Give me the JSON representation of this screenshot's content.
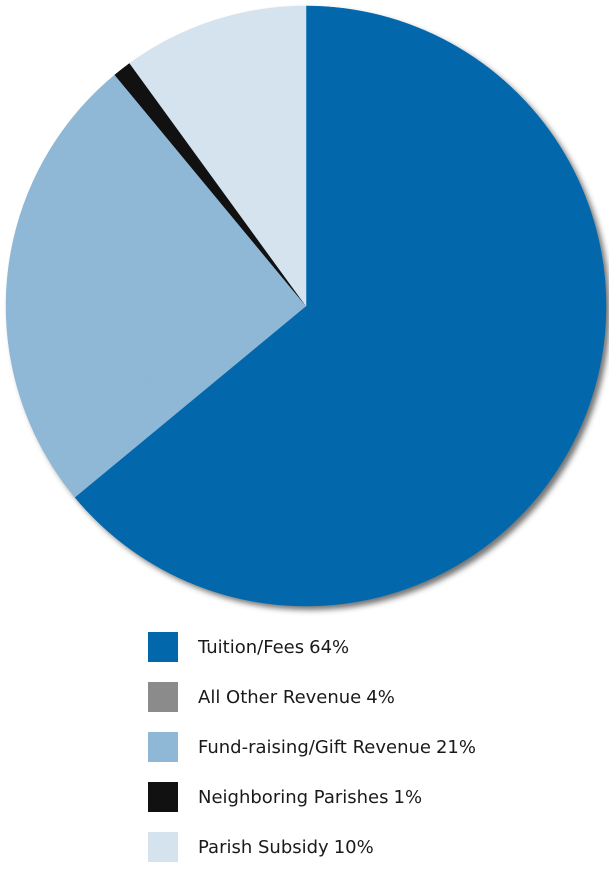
{
  "chart_data": {
    "type": "pie",
    "title": "",
    "start": "12 o'clock",
    "direction": "clockwise",
    "shadow": true,
    "legend": "bottom",
    "slices": [
      {
        "label": "Tuition/Fees",
        "value": 64,
        "value_label": "64%",
        "color": "#0268ab"
      },
      {
        "label": "All Other Revenue",
        "value": 4,
        "value_label": "4%",
        "color": "#8b8b8b",
        "drawn_color": "#8fb7d6"
      },
      {
        "label": "Fund-raising/Gift Revenue",
        "value": 21,
        "value_label": "21%",
        "color": "#8fb7d6"
      },
      {
        "label": "Neighboring Parishes",
        "value": 1,
        "value_label": "1%",
        "color": "#111111"
      },
      {
        "label": "Parish Subsidy",
        "value": 10,
        "value_label": "10%",
        "color": "#d5e3ef"
      }
    ]
  }
}
